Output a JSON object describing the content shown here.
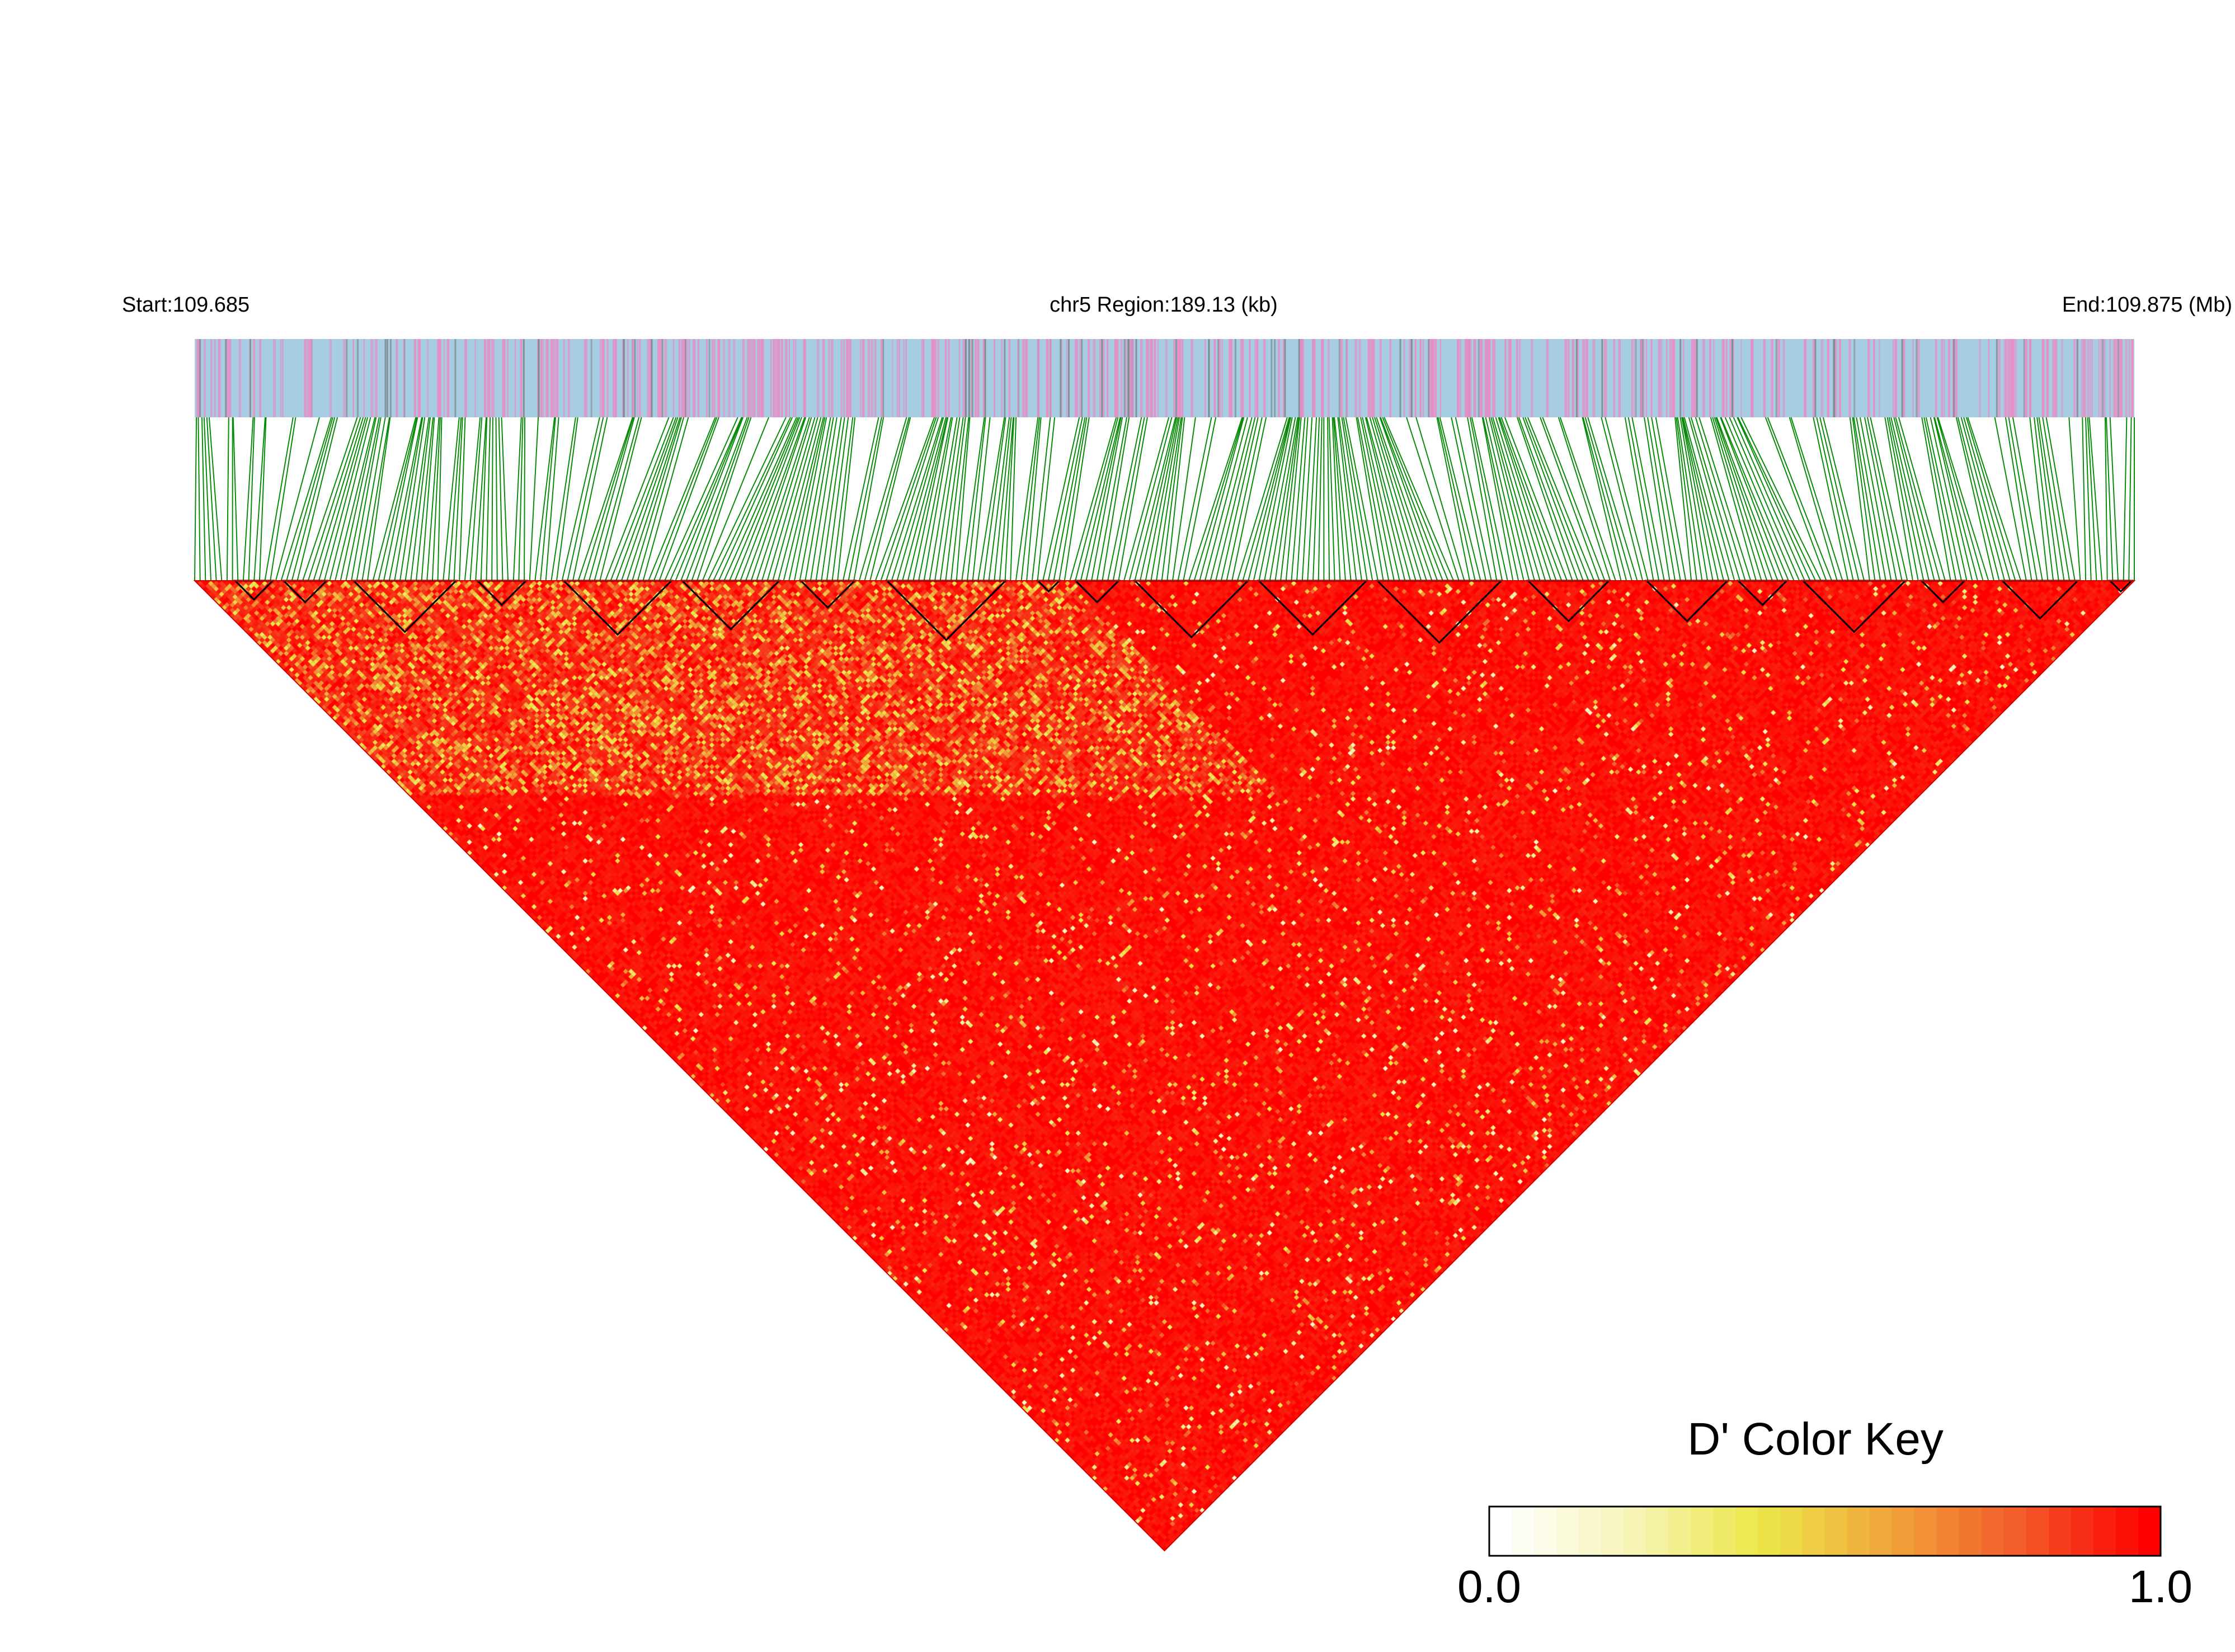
{
  "header": {
    "start_label": "Start:109.685",
    "region_label": "chr5 Region:189.13 (kb)",
    "end_label": "End:109.875 (Mb)"
  },
  "chart_data": {
    "type": "heatmap",
    "subtype": "LD triangle (D')",
    "chromosome": "chr5",
    "region_start_mb": 109.685,
    "region_end_mb": 109.875,
    "region_length_kb": 189.13,
    "measure": "D'",
    "value_range": [
      0.0,
      1.0
    ],
    "dominant_value": "high D' (≈0.9–1.0) across most pairs; lower values concentrated along the near-diagonal band on the left edge",
    "snp_count_approx": 360,
    "haplotype_blocks_approx": 26,
    "tracks": [
      "gene/SNP annotation bar",
      "SNP position connectors",
      "pairwise D' triangle"
    ],
    "colors": {
      "annotation_bar": "#a6cde2",
      "annotation_snp_pink": "#e58fc6",
      "annotation_snp_grey": "#7d8b8f",
      "connector_lines": "#0a8a0a",
      "block_outline": "#000000",
      "high": "#ff0000",
      "mid": "#ecea48",
      "low": "#ffffff"
    }
  },
  "legend": {
    "title": "D' Color Key",
    "min_label": "0.0",
    "max_label": "1.0",
    "stops": [
      "#ffffff",
      "#f6f4b8",
      "#ece84a",
      "#f0a53a",
      "#f25a2a",
      "#ff0000"
    ]
  }
}
